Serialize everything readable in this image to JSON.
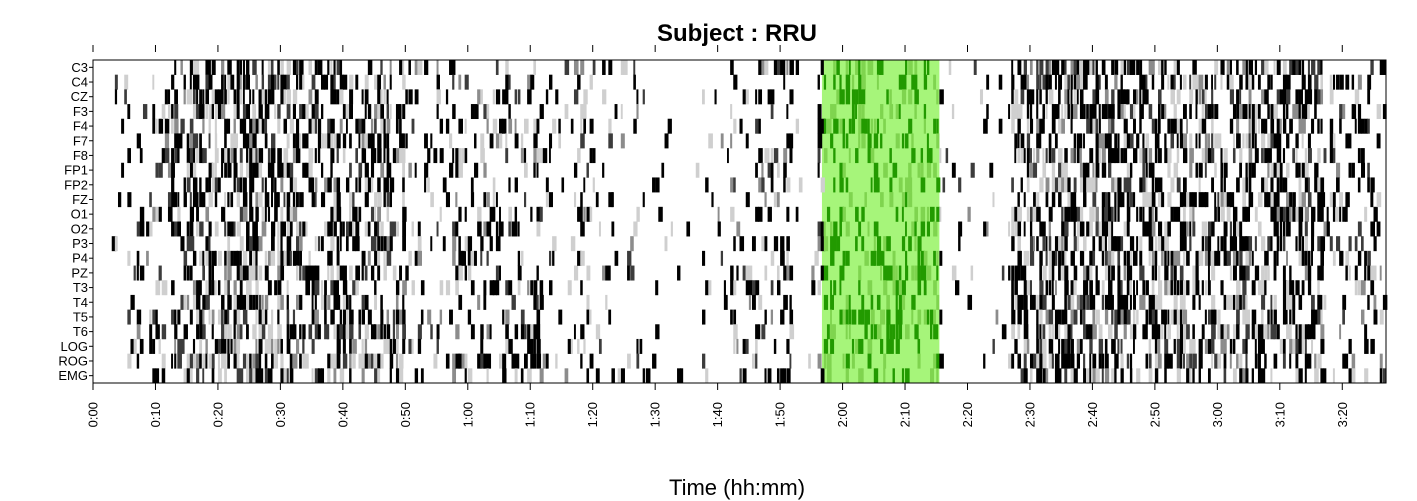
{
  "chart_data": {
    "type": "heatmap",
    "title": "Subject : RRU",
    "xlabel": "Time (hh:mm)",
    "ylabel": "",
    "x_unit": "minutes",
    "xlim": [
      0,
      207
    ],
    "channels": [
      "C3",
      "C4",
      "CZ",
      "F3",
      "F4",
      "F7",
      "F8",
      "FP1",
      "FP2",
      "FZ",
      "O1",
      "O2",
      "P3",
      "P4",
      "PZ",
      "T3",
      "T4",
      "T5",
      "T6",
      "LOG",
      "ROG",
      "EMG"
    ],
    "x_tick_labels": [
      "0:00",
      "0:10",
      "0:20",
      "0:30",
      "0:40",
      "0:50",
      "1:00",
      "1:10",
      "1:20",
      "1:30",
      "1:40",
      "1:50",
      "2:00",
      "2:10",
      "2:20",
      "2:30",
      "2:40",
      "2:50",
      "3:00",
      "3:10",
      "3:20"
    ],
    "x_tick_values": [
      0,
      10,
      20,
      30,
      40,
      50,
      60,
      70,
      80,
      90,
      100,
      110,
      120,
      130,
      140,
      150,
      160,
      170,
      180,
      190,
      200
    ],
    "highlight": {
      "start": 116.7,
      "end": 135.5,
      "color": "#a6f57a",
      "label": ""
    },
    "density_profile": [
      {
        "start": 0,
        "end": 3,
        "density": 0.0
      },
      {
        "start": 3,
        "end": 9,
        "density": 0.12
      },
      {
        "start": 9,
        "end": 15,
        "density": 0.3
      },
      {
        "start": 15,
        "end": 33,
        "density": 0.62
      },
      {
        "start": 33,
        "end": 50,
        "density": 0.5
      },
      {
        "start": 50,
        "end": 55,
        "density": 0.15
      },
      {
        "start": 55,
        "end": 72,
        "density": 0.28
      },
      {
        "start": 72,
        "end": 80,
        "density": 0.2
      },
      {
        "start": 80,
        "end": 88,
        "density": 0.14
      },
      {
        "start": 88,
        "end": 98,
        "density": 0.04
      },
      {
        "start": 98,
        "end": 102,
        "density": 0.1
      },
      {
        "start": 102,
        "end": 112,
        "density": 0.3
      },
      {
        "start": 112,
        "end": 116,
        "density": 0.05
      },
      {
        "start": 116,
        "end": 136,
        "density": 0.35
      },
      {
        "start": 136,
        "end": 140,
        "density": 0.12
      },
      {
        "start": 140,
        "end": 147,
        "density": 0.08
      },
      {
        "start": 147,
        "end": 175,
        "density": 0.58
      },
      {
        "start": 175,
        "end": 197,
        "density": 0.52
      },
      {
        "start": 197,
        "end": 207,
        "density": 0.28
      }
    ],
    "cell_levels": [
      "#000000",
      "#3c3c3c",
      "#8c8c8c",
      "#cfcfcf"
    ],
    "highlight_cell_color": "#229a00",
    "legend": "none",
    "grid": false
  }
}
